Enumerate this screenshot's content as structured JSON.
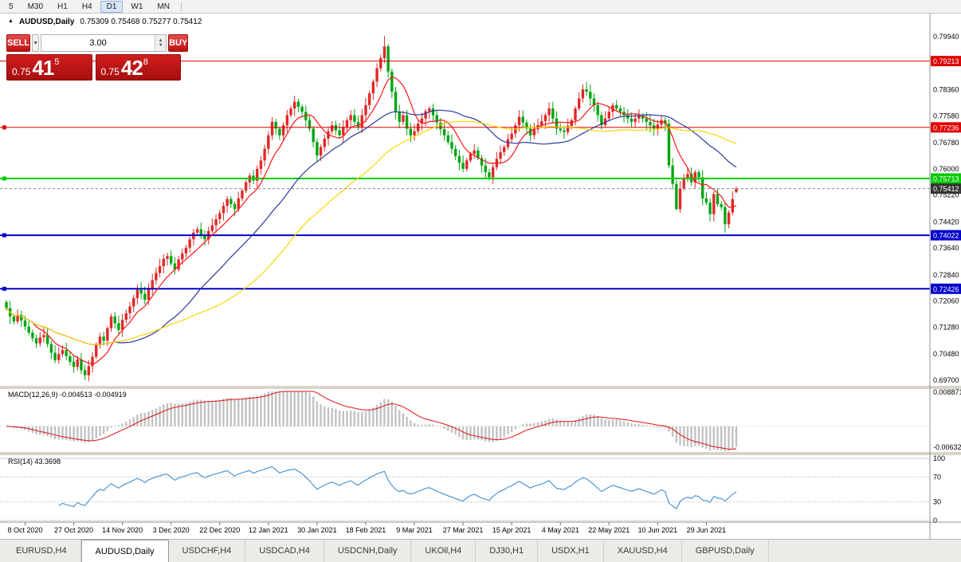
{
  "window": {
    "icon": "▲",
    "symbol": "AUDUSD,Daily",
    "ohlc": "0.75309 0.75468 0.75277 0.75412"
  },
  "toolbar": {
    "timeframes": [
      "5",
      "M30",
      "H1",
      "H4",
      "D1",
      "W1",
      "MN"
    ],
    "active": "D1"
  },
  "one_click": {
    "sell_label": "SELL",
    "buy_label": "BUY",
    "volume": "3.00",
    "dropdown_icon": "▼",
    "spinner_up": "▲",
    "spinner_down": "▼",
    "sell_price": {
      "small": "0.75",
      "big": "41",
      "sup": "5"
    },
    "buy_price": {
      "small": "0.75",
      "big": "42",
      "sup": "8"
    }
  },
  "price_axis_labels": [
    "0.79940",
    "0.78360",
    "0.77580",
    "0.76780",
    "0.76000",
    "0.75220",
    "0.74420",
    "0.73640",
    "0.72840",
    "0.72060",
    "0.71280",
    "0.70480",
    "0.69700"
  ],
  "hlines": [
    {
      "price": 0.79213,
      "label": "0.79213",
      "color": "#e00000",
      "width": 1
    },
    {
      "price": 0.77236,
      "label": "0.77236",
      "color": "#e00000",
      "width": 1
    },
    {
      "price": 0.75713,
      "label": "0.75713",
      "color": "#00cc00",
      "width": 2
    },
    {
      "price": 0.74022,
      "label": "0.74022",
      "color": "#0000cc",
      "width": 2
    },
    {
      "price": 0.72426,
      "label": "0.72426",
      "color": "#0000cc",
      "width": 2
    }
  ],
  "current_price": {
    "value": 0.75412,
    "label": "0.75412",
    "box": "#353535"
  },
  "chart_data": {
    "type": "candlestick",
    "title": "AUDUSD,Daily",
    "up_color": "#e02828",
    "down_color": "#00a510",
    "y_min": 0.697,
    "y_max": 0.7994,
    "x_labels": [
      {
        "t": "8 Oct 2020",
        "i": 5
      },
      {
        "t": "27 Oct 2020",
        "i": 18
      },
      {
        "t": "14 Nov 2020",
        "i": 31
      },
      {
        "t": "3 Dec 2020",
        "i": 44
      },
      {
        "t": "22 Dec 2020",
        "i": 57
      },
      {
        "t": "12 Jan 2021",
        "i": 70
      },
      {
        "t": "30 Jan 2021",
        "i": 83
      },
      {
        "t": "18 Feb 2021",
        "i": 96
      },
      {
        "t": "9 Mar 2021",
        "i": 109
      },
      {
        "t": "27 Mar 2021",
        "i": 122
      },
      {
        "t": "15 Apr 2021",
        "i": 135
      },
      {
        "t": "4 May 2021",
        "i": 148
      },
      {
        "t": "22 May 2021",
        "i": 161
      },
      {
        "t": "10 Jun 2021",
        "i": 174
      },
      {
        "t": "29 Jun 2021",
        "i": 187
      }
    ],
    "closes": [
      0.7185,
      0.716,
      0.7145,
      0.7165,
      0.7148,
      0.713,
      0.7112,
      0.7095,
      0.708,
      0.7098,
      0.7105,
      0.7078,
      0.7052,
      0.703,
      0.7048,
      0.706,
      0.7042,
      0.7025,
      0.701,
      0.7032,
      0.7,
      0.6985,
      0.7012,
      0.704,
      0.7075,
      0.71,
      0.7088,
      0.7125,
      0.716,
      0.714,
      0.712,
      0.715,
      0.717,
      0.719,
      0.7215,
      0.724,
      0.7228,
      0.721,
      0.7245,
      0.7268,
      0.729,
      0.731,
      0.7332,
      0.734,
      0.7318,
      0.73,
      0.733,
      0.7348,
      0.7365,
      0.739,
      0.741,
      0.742,
      0.7402,
      0.739,
      0.7415,
      0.7432,
      0.745,
      0.7468,
      0.749,
      0.751,
      0.7495,
      0.748,
      0.7512,
      0.7535,
      0.756,
      0.758,
      0.7565,
      0.76,
      0.7625,
      0.766,
      0.77,
      0.774,
      0.772,
      0.77,
      0.773,
      0.776,
      0.778,
      0.78,
      0.7785,
      0.777,
      0.7745,
      0.772,
      0.768,
      0.764,
      0.7665,
      0.769,
      0.7712,
      0.773,
      0.7715,
      0.77,
      0.7725,
      0.7745,
      0.776,
      0.774,
      0.7725,
      0.776,
      0.779,
      0.7825,
      0.786,
      0.79,
      0.793,
      0.7965,
      0.789,
      0.783,
      0.777,
      0.774,
      0.776,
      0.772,
      0.77,
      0.7712,
      0.7735,
      0.775,
      0.7772,
      0.778,
      0.776,
      0.7738,
      0.7718,
      0.77,
      0.768,
      0.766,
      0.7638,
      0.7618,
      0.76,
      0.7625,
      0.7645,
      0.7655,
      0.7632,
      0.761,
      0.759,
      0.7575,
      0.7605,
      0.763,
      0.765,
      0.7665,
      0.7688,
      0.7705,
      0.773,
      0.7755,
      0.7738,
      0.772,
      0.77,
      0.7718,
      0.773,
      0.7742,
      0.776,
      0.778,
      0.775,
      0.772,
      0.7715,
      0.771,
      0.7728,
      0.7745,
      0.778,
      0.781,
      0.7837,
      0.783,
      0.781,
      0.779,
      0.776,
      0.773,
      0.775,
      0.777,
      0.779,
      0.778,
      0.777,
      0.776,
      0.775,
      0.774,
      0.775,
      0.776,
      0.775,
      0.774,
      0.773,
      0.772,
      0.7732,
      0.7745,
      0.7735,
      0.761,
      0.7555,
      0.748,
      0.7541,
      0.757,
      0.7585,
      0.756,
      0.759,
      0.7575,
      0.7512,
      0.7499,
      0.7465,
      0.7525,
      0.7495,
      0.7486,
      0.7435,
      0.747,
      0.751,
      0.75412
    ],
    "special": {
      "21": {
        "low": 0.697
      },
      "101": {
        "high": 0.7996
      },
      "179": {
        "low": 0.7478
      },
      "192": {
        "low": 0.741
      }
    },
    "last_ohlc": {
      "open": 0.75309,
      "high": 0.75468,
      "low": 0.75277,
      "close": 0.75412
    },
    "moving_averages": [
      {
        "period": 8,
        "color": "#ff1515"
      },
      {
        "period": 30,
        "color": "#2b3a9e"
      },
      {
        "period": 55,
        "color": "#ffd400"
      }
    ],
    "macd": {
      "label": "MACD(12,26,9)",
      "values": "-0.004513 -0.004919",
      "fast": 12,
      "slow": 26,
      "signal": 9,
      "axis_top": "0.008871",
      "axis_bottom": "-0.00632",
      "hist_color": "#c2c2c2",
      "signal_color": "#e01515"
    },
    "rsi": {
      "label": "RSI(14)",
      "value": "43.3698",
      "period": 14,
      "color": "#3e8ed0",
      "levels": [
        100,
        70,
        30,
        0
      ]
    }
  },
  "tabs": {
    "items": [
      "EURUSD,H4",
      "AUDUSD,Daily",
      "USDCHF,H4",
      "USDCAD,H4",
      "USDCNH,Daily",
      "UKOil,H4",
      "DJ30,H1",
      "USDX,H1",
      "XAUUSD,H4",
      "GBPUSD,Daily"
    ],
    "active": "AUDUSD,Daily"
  }
}
